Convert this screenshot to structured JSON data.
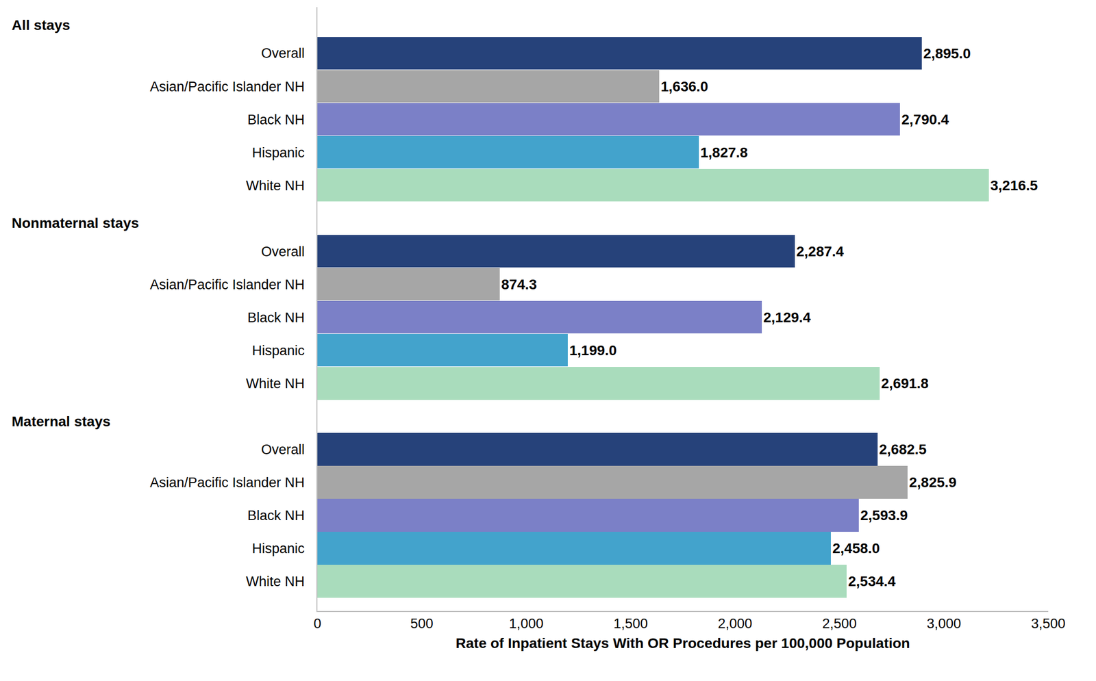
{
  "chart_data": {
    "type": "bar",
    "orientation": "horizontal",
    "x_label": "Rate of Inpatient Stays With OR Procedures per 100,000 Population",
    "categories": [
      "Overall",
      "Asian/Pacific Islander NH",
      "Black NH",
      "Hispanic",
      "White NH"
    ],
    "colors": [
      "#26427a",
      "#a6a6a6",
      "#7b80c7",
      "#43a3cc",
      "#a9dcbc"
    ],
    "series": [
      {
        "name": "All stays",
        "values": [
          2895.0,
          1636.0,
          2790.4,
          1827.8,
          3216.5
        ],
        "value_labels": [
          "2,895.0",
          "1,636.0",
          "2,790.4",
          "1,827.8",
          "3,216.5"
        ]
      },
      {
        "name": "Nonmaternal stays",
        "values": [
          2287.4,
          874.3,
          2129.4,
          1199.0,
          2691.8
        ],
        "value_labels": [
          "2,287.4",
          "874.3",
          "2,129.4",
          "1,199.0",
          "2,691.8"
        ]
      },
      {
        "name": "Maternal stays",
        "values": [
          2682.5,
          2825.9,
          2593.9,
          2458.0,
          2534.4
        ],
        "value_labels": [
          "2,682.5",
          "2,825.9",
          "2,593.9",
          "2,458.0",
          "2,534.4"
        ]
      }
    ],
    "xlim": [
      0,
      3500
    ],
    "xticks": [
      0,
      500,
      {
        "value": 1000,
        "label": "1,000"
      },
      {
        "value": 1500,
        "label": "1,500"
      },
      {
        "value": 2000,
        "label": "2,000"
      },
      {
        "value": 2500,
        "label": "2,500"
      },
      {
        "value": 3000,
        "label": "3,000"
      },
      {
        "value": 3500,
        "label": "3,500"
      }
    ],
    "grid": false,
    "data_labels": true
  }
}
